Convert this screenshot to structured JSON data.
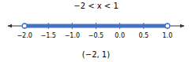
{
  "chart_data": {
    "type": "number_line",
    "title": "−2 < x < 1",
    "xlabel": "(−2, 1)",
    "values": [
      -2.0,
      1.0
    ],
    "color": "#4472c4",
    "marker": "open-circle",
    "xlim": [
      -2.35,
      1.35
    ],
    "xticks": [
      {
        "value": -2.0,
        "label": "−2.0"
      },
      {
        "value": -1.5,
        "label": "−1.5"
      },
      {
        "value": -1.0,
        "label": "−1.0"
      },
      {
        "value": -0.5,
        "label": "−0.5"
      },
      {
        "value": 0.0,
        "label": "0.0"
      },
      {
        "value": 0.5,
        "label": "0.5"
      },
      {
        "value": 1.0,
        "label": "1.0"
      }
    ],
    "grid": false
  }
}
